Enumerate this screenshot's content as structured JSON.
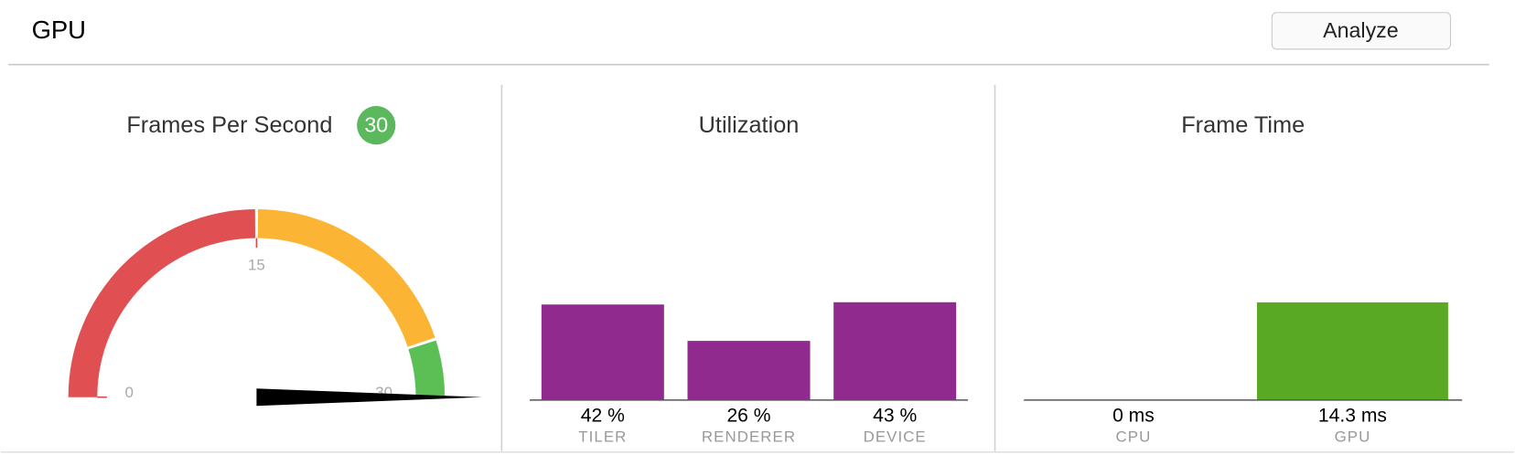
{
  "header": {
    "title": "GPU",
    "button": "Analyze"
  },
  "chart_data": [
    {
      "type": "gauge",
      "title": "Frames Per Second",
      "value": 30,
      "ylim": [
        0,
        30
      ],
      "yticks": [
        0,
        15,
        30
      ],
      "bands": [
        {
          "from": 0,
          "to": 15,
          "color": "#e04f52"
        },
        {
          "from": 15,
          "to": 27,
          "color": "#fbb433"
        },
        {
          "from": 27,
          "to": 30,
          "color": "#5cbf55"
        }
      ],
      "needle_color": "#000000",
      "badge_color": "#5cb85c"
    },
    {
      "type": "bar",
      "title": "Utilization",
      "categories": [
        "TILER",
        "RENDERER",
        "DEVICE"
      ],
      "values": [
        42,
        26,
        43
      ],
      "value_labels": [
        "42 %",
        "26 %",
        "43 %"
      ],
      "color": "#912a8f",
      "ylim": [
        0,
        100
      ]
    },
    {
      "type": "bar",
      "title": "Frame Time",
      "categories": [
        "CPU",
        "GPU"
      ],
      "values": [
        0,
        14.3
      ],
      "value_labels": [
        "0 ms",
        "14.3 ms"
      ],
      "color": "#5aa924",
      "ylim": [
        0,
        33.3
      ]
    }
  ]
}
